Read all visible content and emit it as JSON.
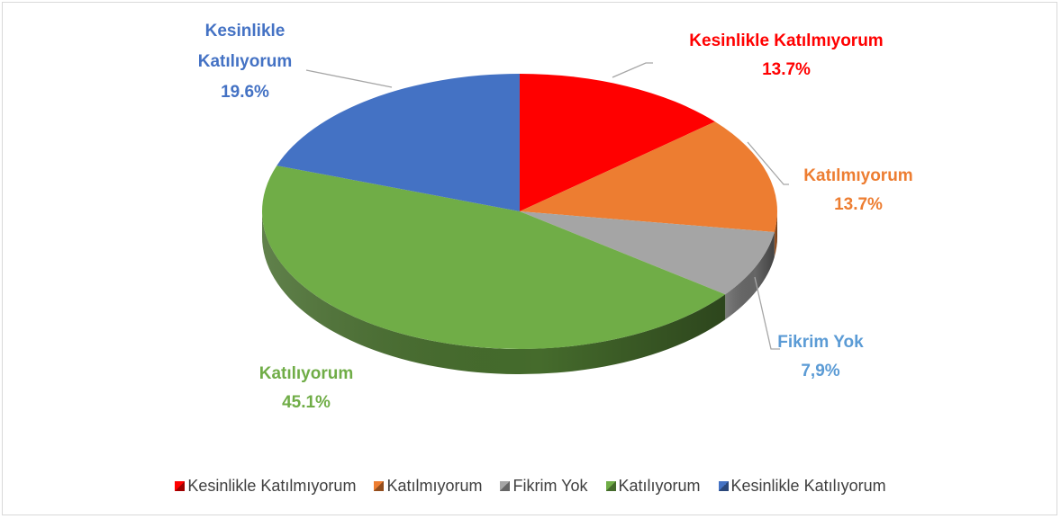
{
  "chart_data": {
    "type": "pie",
    "categories": [
      "Kesinlikle Katılmıyorum",
      "Katılmıyorum",
      "Fikrim Yok",
      "Katılıyorum",
      "Kesinlikle Katılıyorum"
    ],
    "values": [
      13.7,
      13.7,
      7.9,
      45.1,
      19.6
    ],
    "value_labels": [
      "13.7%",
      "13.7%",
      "7,9%",
      "45.1%",
      "19.6%"
    ],
    "colors": [
      "#ff0000",
      "#ed7d31",
      "#a5a5a5",
      "#70ad47",
      "#4472c4"
    ],
    "label_colors": [
      "#ff0000",
      "#ed7d31",
      "#5b9bd5",
      "#70ad47",
      "#4472c4"
    ],
    "legend": "bottom"
  }
}
